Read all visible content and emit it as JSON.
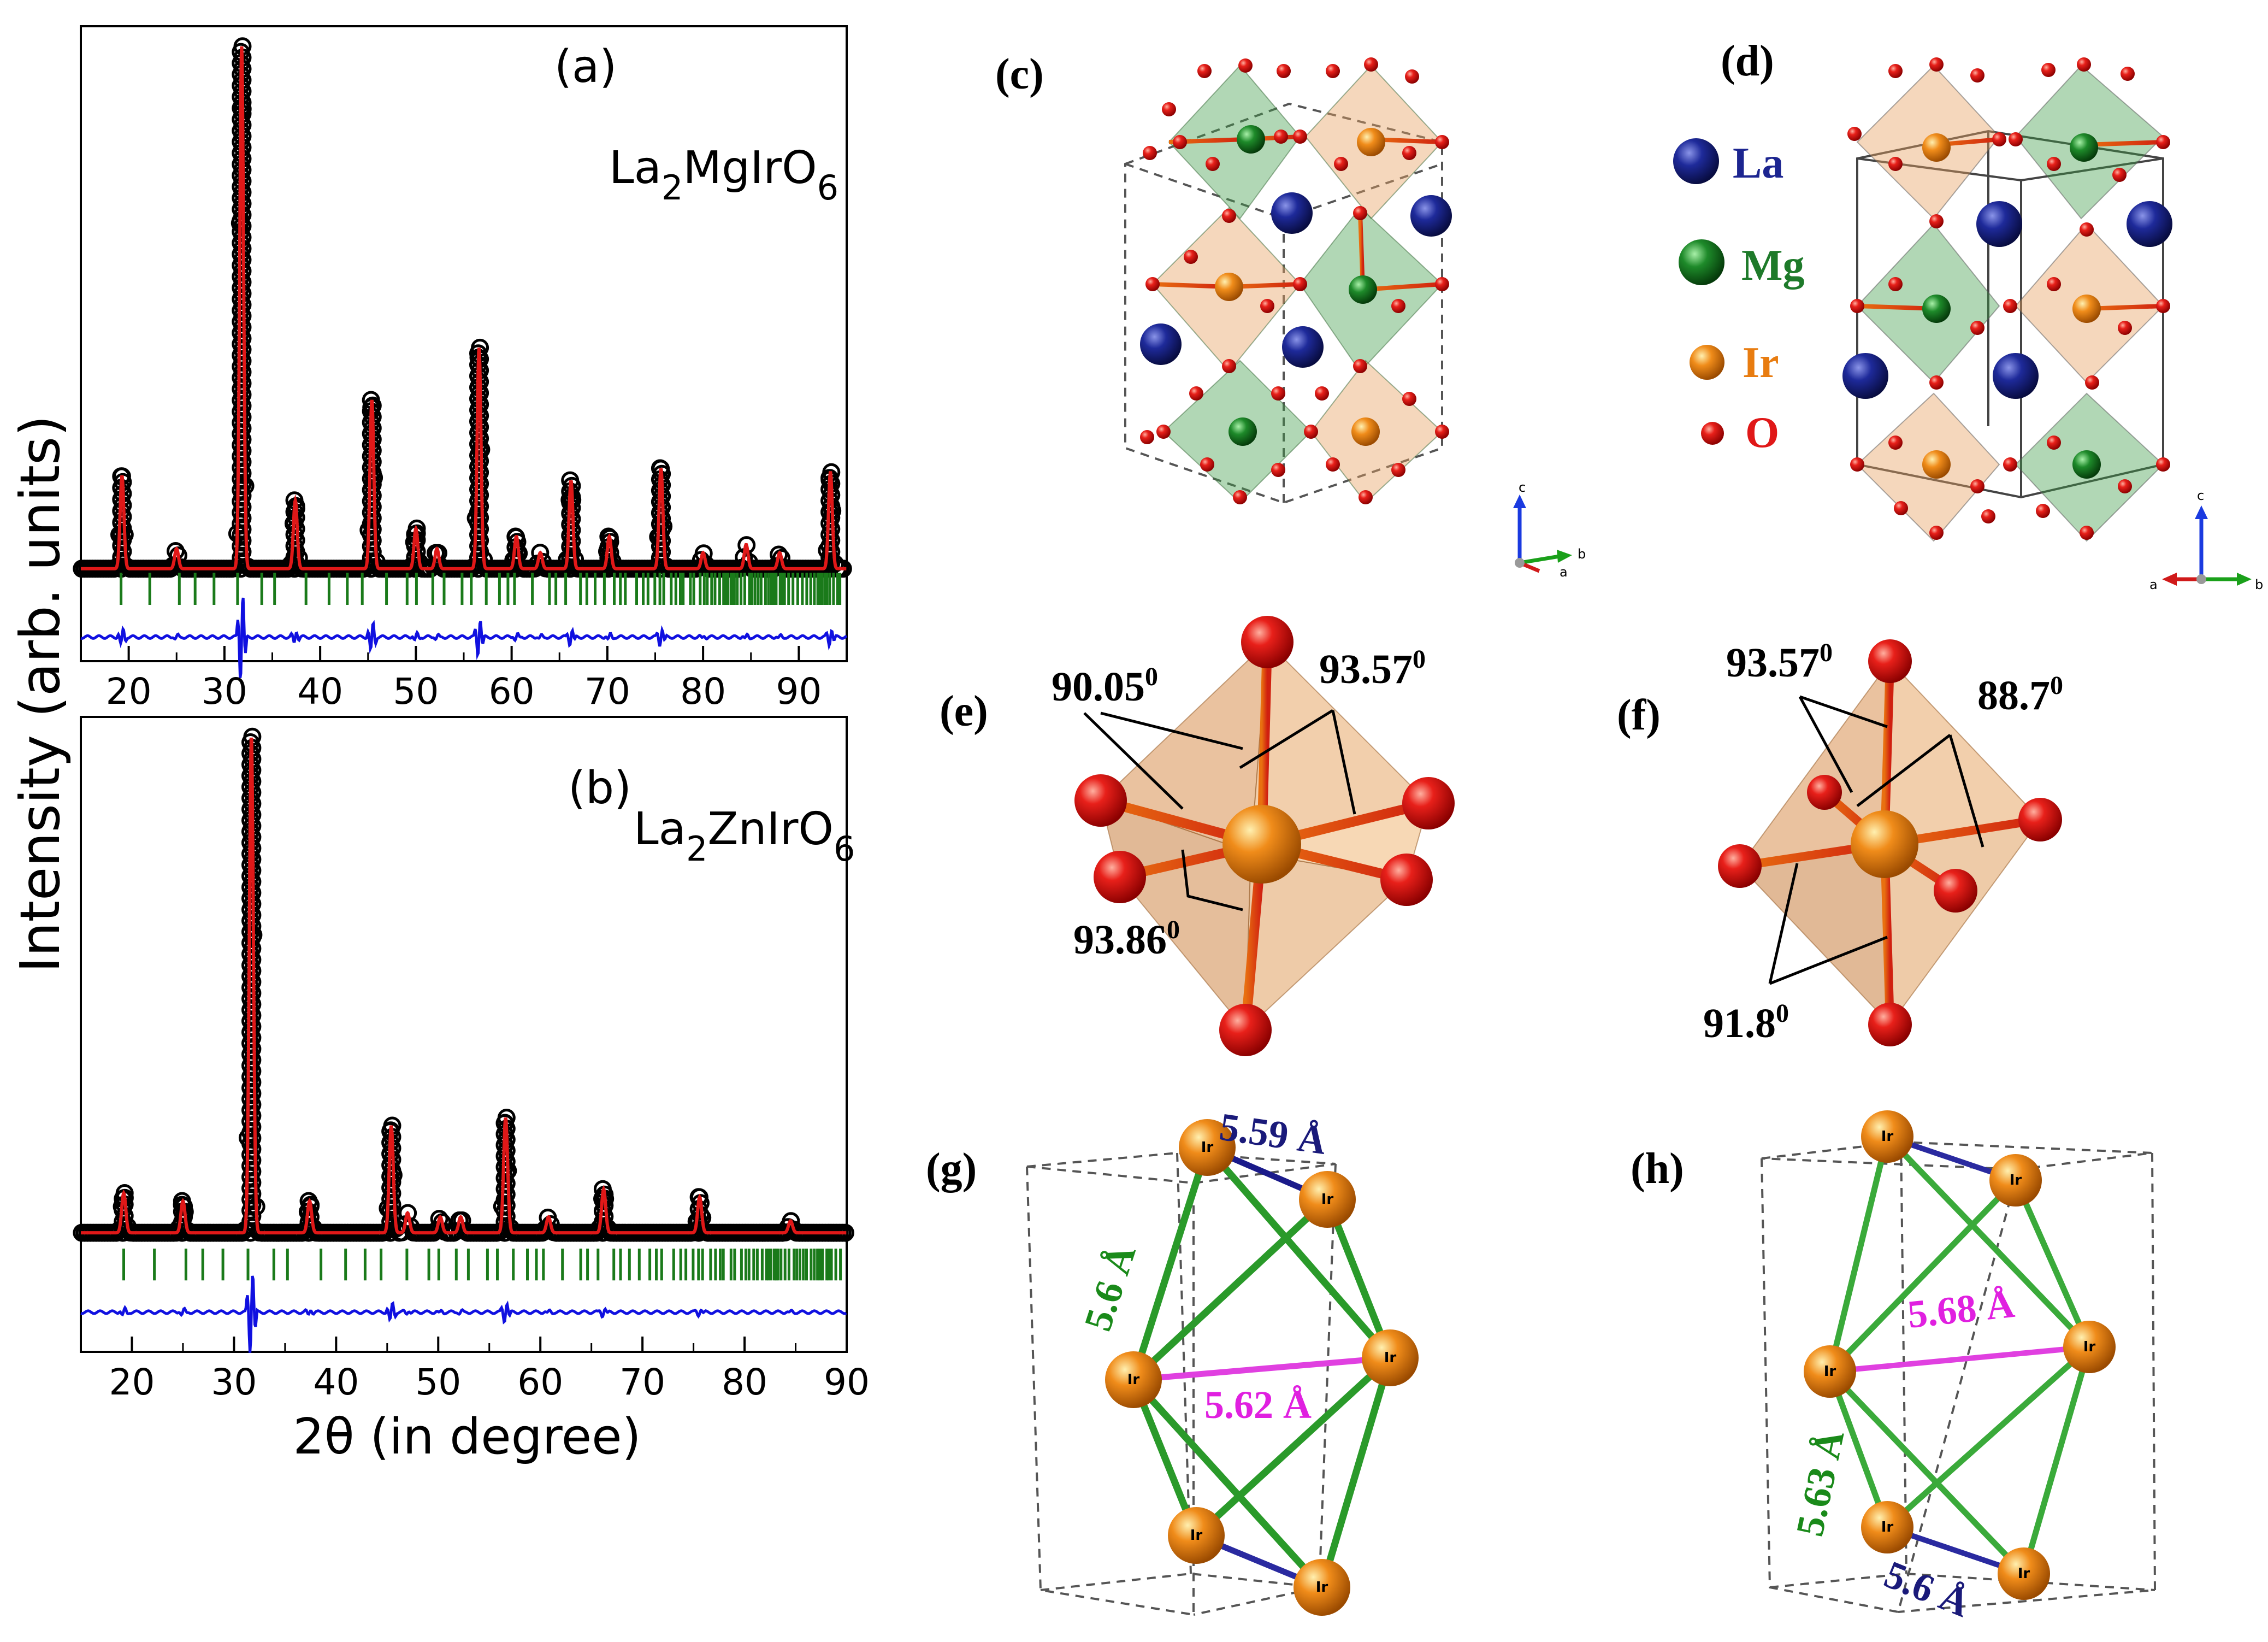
{
  "panels": {
    "a": {
      "label": "(a)",
      "formula": {
        "el1": "La",
        "sub1": "2",
        "el2": "MgIrO",
        "sub2": "6"
      }
    },
    "b": {
      "label": "(b)",
      "formula": {
        "el1": "La",
        "sub1": "2",
        "el2": "ZnIrO",
        "sub2": "6"
      }
    },
    "c": {
      "label": "(c)"
    },
    "d": {
      "label": "(d)"
    },
    "e": {
      "label": "(e)"
    },
    "f": {
      "label": "(f)"
    },
    "g": {
      "label": "(g)"
    },
    "h": {
      "label": "(h)"
    }
  },
  "legend": {
    "items": [
      {
        "symbol": "La",
        "color": "#1c2590"
      },
      {
        "symbol": "Mg",
        "color": "#1e7a2a"
      },
      {
        "symbol": "Ir",
        "color": "#e87c10"
      },
      {
        "symbol": "O",
        "color": "#e01818"
      }
    ]
  },
  "axes_c": {
    "c": "c",
    "b": "b",
    "a": "a"
  },
  "axes_d": {
    "c": "c",
    "a": "a",
    "b": "b"
  },
  "angles_e": {
    "a1": "90.05",
    "a2": "93.57",
    "a3": "93.86",
    "deg": "0"
  },
  "angles_f": {
    "a1": "93.57",
    "a2": "88.7",
    "a3": "91.8",
    "deg": "0"
  },
  "distances_g": {
    "d1": "5.59 Å",
    "d2": "5.6 Å",
    "d3": "5.62 Å"
  },
  "distances_h": {
    "d1": "5.68 Å",
    "d2": "5.63 Å",
    "d3": "5.6 Å"
  },
  "ir_label": "Ir",
  "chart_data": [
    {
      "type": "line",
      "panel": "a",
      "title": "La2MgIrO6",
      "xlabel": "2θ (in degree)",
      "ylabel": "Intensity (arb. units)",
      "xlim": [
        15,
        95
      ],
      "ylim": [
        -23,
        135
      ],
      "xticks": [
        "20",
        "30",
        "40",
        "50",
        "60",
        "70",
        "80",
        "90"
      ],
      "grid": false,
      "peaks": [
        {
          "x": 19.3,
          "h": 23
        },
        {
          "x": 25.0,
          "h": 5
        },
        {
          "x": 31.8,
          "h": 130
        },
        {
          "x": 37.4,
          "h": 17
        },
        {
          "x": 45.4,
          "h": 42
        },
        {
          "x": 50.0,
          "h": 10
        },
        {
          "x": 52.2,
          "h": 5
        },
        {
          "x": 56.6,
          "h": 55
        },
        {
          "x": 60.5,
          "h": 8
        },
        {
          "x": 63.0,
          "h": 4
        },
        {
          "x": 66.2,
          "h": 22
        },
        {
          "x": 70.2,
          "h": 8
        },
        {
          "x": 75.6,
          "h": 25
        },
        {
          "x": 80.0,
          "h": 4
        },
        {
          "x": 84.5,
          "h": 6
        },
        {
          "x": 88.0,
          "h": 4
        },
        {
          "x": 93.3,
          "h": 24
        }
      ],
      "series": [
        {
          "name": "observed",
          "color": "#000000"
        },
        {
          "name": "calculated",
          "color": "#e01818"
        },
        {
          "name": "Bragg positions",
          "color": "#1a7a1a"
        },
        {
          "name": "difference",
          "color": "#1010e0"
        }
      ]
    },
    {
      "type": "line",
      "panel": "b",
      "title": "La2ZnIrO6",
      "xlabel": "2θ (in degree)",
      "ylabel": "Intensity (arb. units)",
      "xlim": [
        15,
        90
      ],
      "ylim": [
        -30,
        130
      ],
      "xticks": [
        "20",
        "30",
        "40",
        "50",
        "60",
        "70",
        "80",
        "90"
      ],
      "grid": false,
      "peaks": [
        {
          "x": 19.2,
          "h": 10
        },
        {
          "x": 25.0,
          "h": 8
        },
        {
          "x": 31.7,
          "h": 125
        },
        {
          "x": 37.4,
          "h": 8
        },
        {
          "x": 45.4,
          "h": 27
        },
        {
          "x": 47.0,
          "h": 5
        },
        {
          "x": 50.2,
          "h": 4
        },
        {
          "x": 52.2,
          "h": 4
        },
        {
          "x": 56.6,
          "h": 29
        },
        {
          "x": 60.8,
          "h": 4
        },
        {
          "x": 66.2,
          "h": 11
        },
        {
          "x": 75.6,
          "h": 9
        },
        {
          "x": 84.5,
          "h": 3
        }
      ],
      "series": [
        {
          "name": "observed",
          "color": "#000000"
        },
        {
          "name": "calculated",
          "color": "#e01818"
        },
        {
          "name": "Bragg positions",
          "color": "#1a7a1a"
        },
        {
          "name": "difference",
          "color": "#1010e0"
        }
      ]
    }
  ]
}
